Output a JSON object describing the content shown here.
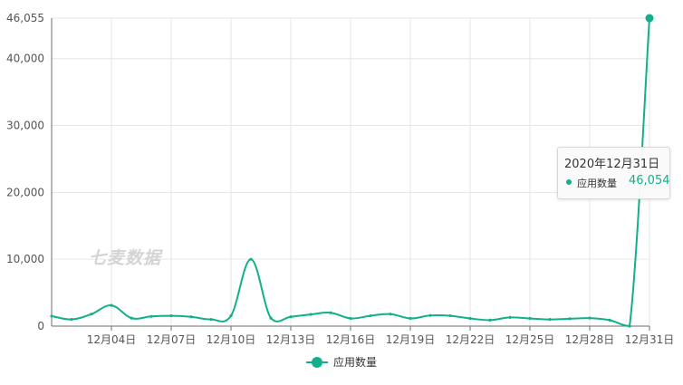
{
  "colors": {
    "series": "#12b08a",
    "grid": "#e6e6e6",
    "axis": "#6e6e6e",
    "label": "#555555"
  },
  "watermark": "七麦数据",
  "tooltip": {
    "title": "2020年12月31日",
    "series_name": "应用数量",
    "value": "46,054"
  },
  "legend": {
    "label": "应用数量"
  },
  "chart_data": {
    "type": "line",
    "smooth": true,
    "x_labels": [
      "12月04日",
      "12月07日",
      "12月10日",
      "12月13日",
      "12月16日",
      "12月19日",
      "12月22日",
      "12月25日",
      "12月28日",
      "12月31日"
    ],
    "x": [
      "12月01日",
      "12月02日",
      "12月03日",
      "12月04日",
      "12月05日",
      "12月06日",
      "12月07日",
      "12月08日",
      "12月09日",
      "12月10日",
      "12月11日",
      "12月12日",
      "12月13日",
      "12月14日",
      "12月15日",
      "12月16日",
      "12月17日",
      "12月18日",
      "12月19日",
      "12月20日",
      "12月21日",
      "12月22日",
      "12月23日",
      "12月24日",
      "12月25日",
      "12月26日",
      "12月27日",
      "12月28日",
      "12月29日",
      "12月30日",
      "12月31日"
    ],
    "series": [
      {
        "name": "应用数量",
        "values": [
          1500,
          1000,
          1800,
          3100,
          1200,
          1450,
          1550,
          1400,
          1000,
          1550,
          10000,
          1200,
          1400,
          1750,
          2000,
          1150,
          1550,
          1800,
          1150,
          1600,
          1550,
          1150,
          900,
          1300,
          1150,
          1000,
          1100,
          1200,
          900,
          0,
          46054
        ]
      }
    ],
    "y_ticks": [
      0,
      10000,
      20000,
      30000,
      40000,
      46055
    ],
    "y_tick_labels": [
      "0",
      "10,000",
      "20,000",
      "30,000",
      "40,000",
      "46,055"
    ],
    "ylim": [
      0,
      46055
    ],
    "grid": true,
    "legend_position": "bottom"
  }
}
